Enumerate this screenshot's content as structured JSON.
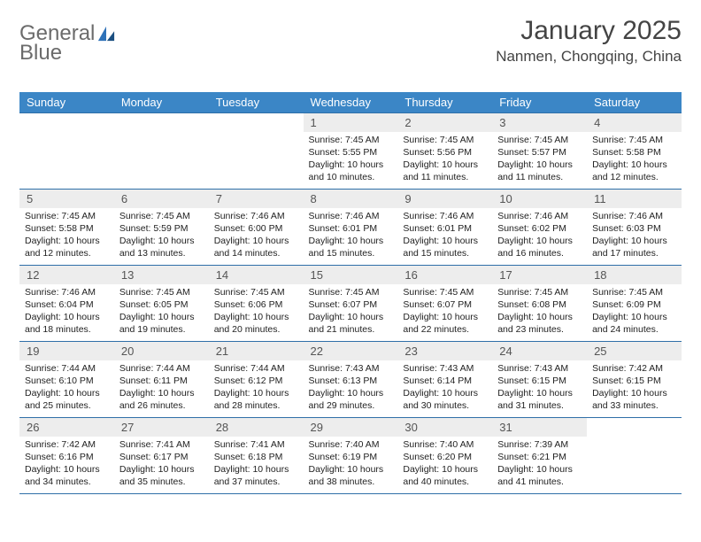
{
  "brand": {
    "word1": "General",
    "word2": "Blue"
  },
  "title": "January 2025",
  "location": "Nanmen, Chongqing, China",
  "colors": {
    "header_bg": "#3b86c6",
    "rule": "#2f6fa8",
    "daynum_bg": "#ededed",
    "logo_gray": "#6b6b6b",
    "logo_blue": "#2f72b8"
  },
  "weekdays": [
    "Sunday",
    "Monday",
    "Tuesday",
    "Wednesday",
    "Thursday",
    "Friday",
    "Saturday"
  ],
  "weeks": [
    [
      {
        "n": "",
        "sr": "",
        "ss": "",
        "dl": ""
      },
      {
        "n": "",
        "sr": "",
        "ss": "",
        "dl": ""
      },
      {
        "n": "",
        "sr": "",
        "ss": "",
        "dl": ""
      },
      {
        "n": "1",
        "sr": "7:45 AM",
        "ss": "5:55 PM",
        "dl": "10 hours and 10 minutes."
      },
      {
        "n": "2",
        "sr": "7:45 AM",
        "ss": "5:56 PM",
        "dl": "10 hours and 11 minutes."
      },
      {
        "n": "3",
        "sr": "7:45 AM",
        "ss": "5:57 PM",
        "dl": "10 hours and 11 minutes."
      },
      {
        "n": "4",
        "sr": "7:45 AM",
        "ss": "5:58 PM",
        "dl": "10 hours and 12 minutes."
      }
    ],
    [
      {
        "n": "5",
        "sr": "7:45 AM",
        "ss": "5:58 PM",
        "dl": "10 hours and 12 minutes."
      },
      {
        "n": "6",
        "sr": "7:45 AM",
        "ss": "5:59 PM",
        "dl": "10 hours and 13 minutes."
      },
      {
        "n": "7",
        "sr": "7:46 AM",
        "ss": "6:00 PM",
        "dl": "10 hours and 14 minutes."
      },
      {
        "n": "8",
        "sr": "7:46 AM",
        "ss": "6:01 PM",
        "dl": "10 hours and 15 minutes."
      },
      {
        "n": "9",
        "sr": "7:46 AM",
        "ss": "6:01 PM",
        "dl": "10 hours and 15 minutes."
      },
      {
        "n": "10",
        "sr": "7:46 AM",
        "ss": "6:02 PM",
        "dl": "10 hours and 16 minutes."
      },
      {
        "n": "11",
        "sr": "7:46 AM",
        "ss": "6:03 PM",
        "dl": "10 hours and 17 minutes."
      }
    ],
    [
      {
        "n": "12",
        "sr": "7:46 AM",
        "ss": "6:04 PM",
        "dl": "10 hours and 18 minutes."
      },
      {
        "n": "13",
        "sr": "7:45 AM",
        "ss": "6:05 PM",
        "dl": "10 hours and 19 minutes."
      },
      {
        "n": "14",
        "sr": "7:45 AM",
        "ss": "6:06 PM",
        "dl": "10 hours and 20 minutes."
      },
      {
        "n": "15",
        "sr": "7:45 AM",
        "ss": "6:07 PM",
        "dl": "10 hours and 21 minutes."
      },
      {
        "n": "16",
        "sr": "7:45 AM",
        "ss": "6:07 PM",
        "dl": "10 hours and 22 minutes."
      },
      {
        "n": "17",
        "sr": "7:45 AM",
        "ss": "6:08 PM",
        "dl": "10 hours and 23 minutes."
      },
      {
        "n": "18",
        "sr": "7:45 AM",
        "ss": "6:09 PM",
        "dl": "10 hours and 24 minutes."
      }
    ],
    [
      {
        "n": "19",
        "sr": "7:44 AM",
        "ss": "6:10 PM",
        "dl": "10 hours and 25 minutes."
      },
      {
        "n": "20",
        "sr": "7:44 AM",
        "ss": "6:11 PM",
        "dl": "10 hours and 26 minutes."
      },
      {
        "n": "21",
        "sr": "7:44 AM",
        "ss": "6:12 PM",
        "dl": "10 hours and 28 minutes."
      },
      {
        "n": "22",
        "sr": "7:43 AM",
        "ss": "6:13 PM",
        "dl": "10 hours and 29 minutes."
      },
      {
        "n": "23",
        "sr": "7:43 AM",
        "ss": "6:14 PM",
        "dl": "10 hours and 30 minutes."
      },
      {
        "n": "24",
        "sr": "7:43 AM",
        "ss": "6:15 PM",
        "dl": "10 hours and 31 minutes."
      },
      {
        "n": "25",
        "sr": "7:42 AM",
        "ss": "6:15 PM",
        "dl": "10 hours and 33 minutes."
      }
    ],
    [
      {
        "n": "26",
        "sr": "7:42 AM",
        "ss": "6:16 PM",
        "dl": "10 hours and 34 minutes."
      },
      {
        "n": "27",
        "sr": "7:41 AM",
        "ss": "6:17 PM",
        "dl": "10 hours and 35 minutes."
      },
      {
        "n": "28",
        "sr": "7:41 AM",
        "ss": "6:18 PM",
        "dl": "10 hours and 37 minutes."
      },
      {
        "n": "29",
        "sr": "7:40 AM",
        "ss": "6:19 PM",
        "dl": "10 hours and 38 minutes."
      },
      {
        "n": "30",
        "sr": "7:40 AM",
        "ss": "6:20 PM",
        "dl": "10 hours and 40 minutes."
      },
      {
        "n": "31",
        "sr": "7:39 AM",
        "ss": "6:21 PM",
        "dl": "10 hours and 41 minutes."
      },
      {
        "n": "",
        "sr": "",
        "ss": "",
        "dl": ""
      }
    ]
  ],
  "labels": {
    "sunrise": "Sunrise:",
    "sunset": "Sunset:",
    "daylight": "Daylight:"
  }
}
